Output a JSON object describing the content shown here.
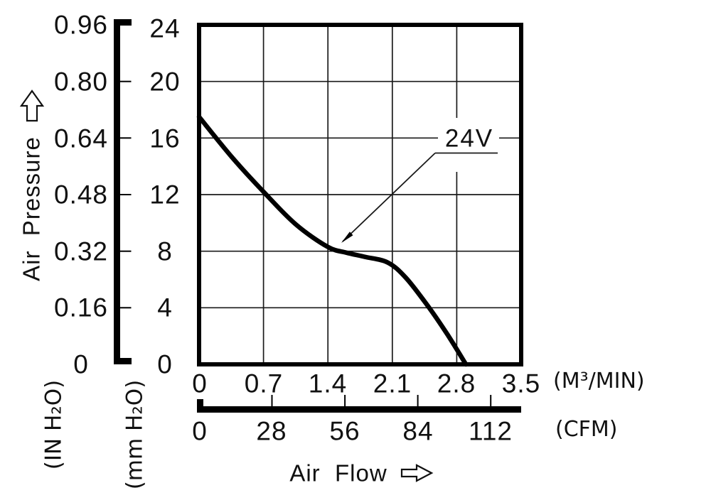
{
  "labels": {
    "y_axis_title": "Air  Pressure",
    "x_axis_title": "Air  Flow",
    "curve_label": "24V"
  },
  "axes": {
    "pressure_in": {
      "unit": "(IN H₂O)",
      "ticks": [
        "0.96",
        "0.80",
        "0.64",
        "0.48",
        "0.32",
        "0.16",
        "0"
      ]
    },
    "pressure_mm": {
      "unit": "(mm H₂O)",
      "ticks": [
        "24",
        "20",
        "16",
        "12",
        "8",
        "4",
        "0"
      ]
    },
    "flow_m3": {
      "unit": "(M³/MIN)",
      "ticks": [
        "0",
        "0.7",
        "1.4",
        "2.1",
        "2.8",
        "3.5"
      ]
    },
    "flow_cfm": {
      "unit": "(CFM)",
      "ticks": [
        "0",
        "28",
        "56",
        "84",
        "112"
      ]
    }
  },
  "chart_data": {
    "type": "line",
    "title": "",
    "xlabel": "Air Flow",
    "ylabel": "Air Pressure",
    "grid": true,
    "x_axes": [
      {
        "unit": "M³/MIN",
        "range": [
          0,
          3.5
        ],
        "ticks": [
          0,
          0.7,
          1.4,
          2.1,
          2.8,
          3.5
        ]
      },
      {
        "unit": "CFM",
        "range": [
          0,
          123.6
        ],
        "ticks": [
          0,
          28,
          56,
          84,
          112
        ]
      }
    ],
    "y_axes": [
      {
        "unit": "mm H₂O",
        "range": [
          0,
          24
        ],
        "ticks": [
          0,
          4,
          8,
          12,
          16,
          20,
          24
        ]
      },
      {
        "unit": "IN H₂O",
        "range": [
          0,
          0.96
        ],
        "ticks": [
          0,
          0.16,
          0.32,
          0.48,
          0.64,
          0.8,
          0.96
        ]
      }
    ],
    "series": [
      {
        "name": "24V",
        "points": [
          [
            0,
            17.5
          ],
          [
            0.35,
            14.7
          ],
          [
            0.7,
            12.2
          ],
          [
            1.05,
            9.9
          ],
          [
            1.4,
            8.3
          ],
          [
            1.6,
            7.9
          ],
          [
            1.8,
            7.6
          ],
          [
            2.05,
            7.2
          ],
          [
            2.25,
            6.1
          ],
          [
            2.5,
            4.0
          ],
          [
            2.7,
            2.1
          ],
          [
            2.9,
            0
          ]
        ]
      }
    ],
    "annotation": {
      "text": "24V",
      "points_to_x_m3min": 1.54,
      "points_to_y_mmh2o": 8.2
    },
    "colors": {
      "curve": "#000000",
      "grid": "#1a1a1a",
      "background": "#ffffff"
    }
  }
}
